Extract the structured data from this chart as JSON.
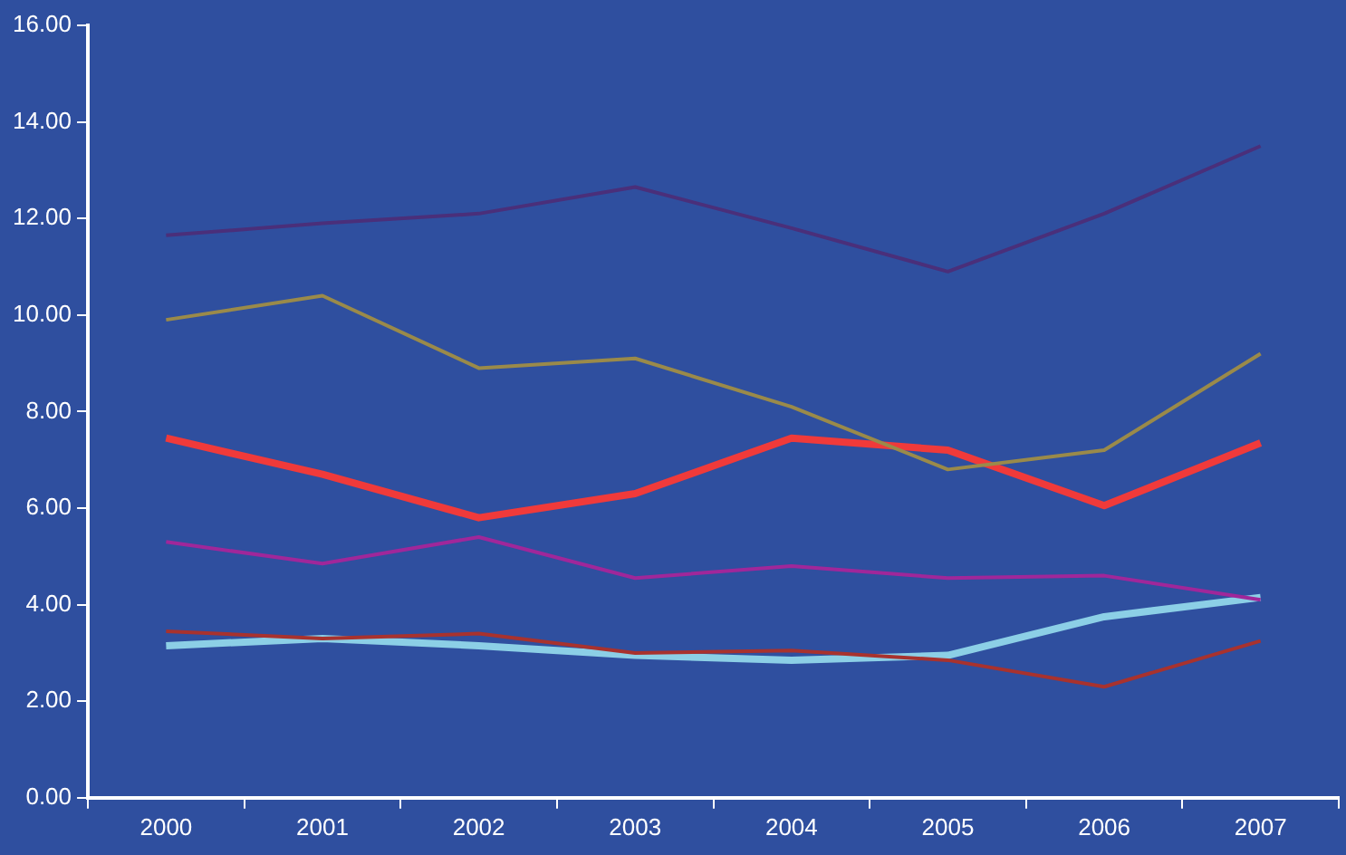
{
  "chart_data": {
    "type": "line",
    "categories": [
      "2000",
      "2001",
      "2002",
      "2003",
      "2004",
      "2005",
      "2006",
      "2007"
    ],
    "series": [
      {
        "color": "#4a2f7a",
        "values": [
          11.65,
          11.9,
          12.1,
          12.65,
          11.8,
          10.9,
          12.1,
          13.5
        ]
      },
      {
        "color": "#9a8a4a",
        "values": [
          9.9,
          10.4,
          8.9,
          9.1,
          8.1,
          6.8,
          7.2,
          9.2
        ]
      },
      {
        "color": "#f03a3a",
        "values": [
          7.45,
          6.7,
          5.8,
          6.3,
          7.45,
          7.2,
          6.05,
          7.35
        ]
      },
      {
        "color": "#a0279a",
        "values": [
          5.3,
          4.85,
          5.4,
          4.55,
          4.8,
          4.55,
          4.6,
          4.1
        ]
      },
      {
        "color": "#a8322e",
        "values": [
          3.45,
          3.3,
          3.4,
          3.0,
          3.05,
          2.85,
          2.3,
          3.25
        ]
      },
      {
        "color": "#8ccfe6",
        "values": [
          3.15,
          3.3,
          3.15,
          2.95,
          2.85,
          2.95,
          3.75,
          4.15
        ]
      }
    ],
    "ylim": [
      0,
      16
    ],
    "yticks": [
      {
        "value": 0,
        "label": "0.00"
      },
      {
        "value": 2,
        "label": "2.00"
      },
      {
        "value": 4,
        "label": "4.00"
      },
      {
        "value": 6,
        "label": "6.00"
      },
      {
        "value": 8,
        "label": "8.00"
      },
      {
        "value": 10,
        "label": "10.00"
      },
      {
        "value": 12,
        "label": "12.00"
      },
      {
        "value": 14,
        "label": "14.00"
      },
      {
        "value": 16,
        "label": "16.00"
      }
    ],
    "grid": false,
    "legend": false,
    "marker": "none",
    "line_style": "solid"
  }
}
